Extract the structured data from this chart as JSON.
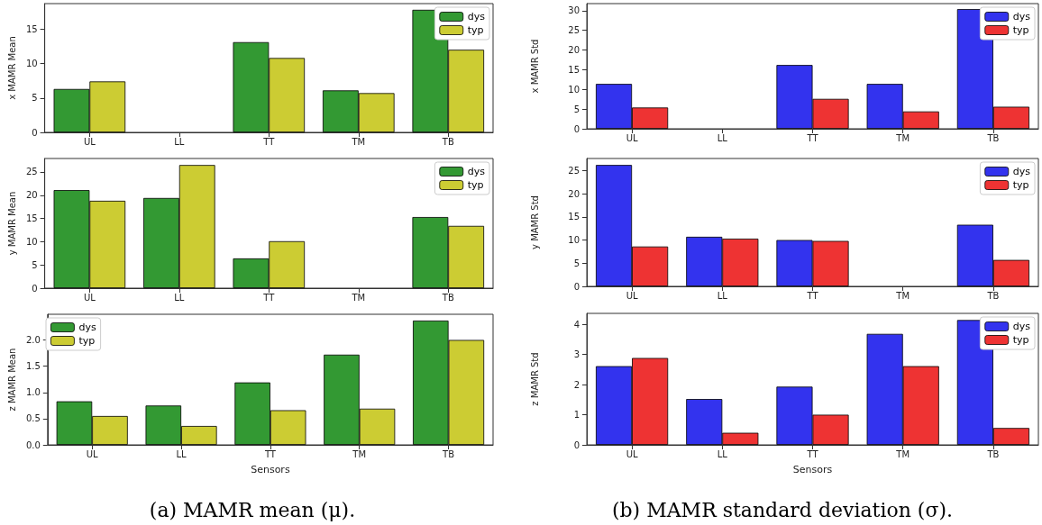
{
  "chart_data": [
    {
      "type": "bar",
      "ylabel": "x MAMR Mean",
      "categories": [
        "UL",
        "LL",
        "TT",
        "TM",
        "TB"
      ],
      "ylim": [
        0,
        18.7
      ],
      "yticks": [
        0,
        5,
        10,
        15
      ],
      "legend": "top right",
      "series": [
        {
          "name": "dys",
          "color": "#339933",
          "values": [
            6.3,
            null,
            13.1,
            6.1,
            17.8
          ]
        },
        {
          "name": "typ",
          "color": "#cccc33",
          "values": [
            7.4,
            null,
            10.8,
            5.7,
            12.0
          ]
        }
      ]
    },
    {
      "type": "bar",
      "ylabel": "x MAMR Std",
      "categories": [
        "UL",
        "LL",
        "TT",
        "TM",
        "TB"
      ],
      "ylim": [
        0,
        31.8
      ],
      "yticks": [
        0,
        5,
        10,
        15,
        20,
        25,
        30
      ],
      "legend": "top right",
      "series": [
        {
          "name": "dys",
          "color": "#3333ee",
          "values": [
            11.4,
            null,
            16.2,
            11.4,
            30.4
          ]
        },
        {
          "name": "typ",
          "color": "#ee3333",
          "values": [
            5.4,
            null,
            7.6,
            4.4,
            5.6
          ]
        }
      ]
    },
    {
      "type": "bar",
      "ylabel": "y MAMR Mean",
      "categories": [
        "UL",
        "LL",
        "TT",
        "TM",
        "TB"
      ],
      "ylim": [
        0,
        27.9
      ],
      "yticks": [
        0,
        5,
        10,
        15,
        20,
        25
      ],
      "legend": "top right",
      "series": [
        {
          "name": "dys",
          "color": "#339933",
          "values": [
            21.1,
            19.4,
            6.4,
            null,
            15.3
          ]
        },
        {
          "name": "typ",
          "color": "#cccc33",
          "values": [
            18.8,
            26.5,
            10.1,
            null,
            13.4
          ]
        }
      ]
    },
    {
      "type": "bar",
      "ylabel": "y MAMR Std",
      "categories": [
        "UL",
        "LL",
        "TT",
        "TM",
        "TB"
      ],
      "ylim": [
        0,
        27.6
      ],
      "yticks": [
        0,
        5,
        10,
        15,
        20,
        25
      ],
      "legend": "top right",
      "series": [
        {
          "name": "dys",
          "color": "#3333ee",
          "values": [
            26.2,
            10.7,
            10.0,
            null,
            13.3
          ]
        },
        {
          "name": "typ",
          "color": "#ee3333",
          "values": [
            8.6,
            10.3,
            9.8,
            null,
            5.7
          ]
        }
      ]
    },
    {
      "type": "bar",
      "ylabel": "z MAMR Mean",
      "xlabel": "Sensors",
      "categories": [
        "UL",
        "LL",
        "TT",
        "TM",
        "TB"
      ],
      "ylim": [
        0,
        2.49
      ],
      "yticks": [
        {
          "value": 0,
          "label": "0.0"
        },
        0.5,
        {
          "value": 1,
          "label": "1.0"
        },
        1.5,
        {
          "value": 2,
          "label": "2.0"
        }
      ],
      "legend": "top left",
      "annotations": [
        "(a) MAMR mean (μ)."
      ],
      "series": [
        {
          "name": "dys",
          "color": "#339933",
          "values": [
            0.83,
            0.75,
            1.19,
            1.72,
            2.37
          ]
        },
        {
          "name": "typ",
          "color": "#cccc33",
          "values": [
            0.55,
            0.36,
            0.66,
            0.69,
            2.0
          ]
        }
      ]
    },
    {
      "type": "bar",
      "ylabel": "z MAMR Std",
      "xlabel": "Sensors",
      "categories": [
        "UL",
        "LL",
        "TT",
        "TM",
        "TB"
      ],
      "ylim": [
        0,
        4.36
      ],
      "yticks": [
        0,
        1,
        2,
        3,
        4
      ],
      "legend": "top right",
      "annotations": [
        "(b) MAMR standard deviation (σ)."
      ],
      "series": [
        {
          "name": "dys",
          "color": "#3333ee",
          "values": [
            2.61,
            1.52,
            1.93,
            3.68,
            4.14
          ]
        },
        {
          "name": "typ",
          "color": "#ee3333",
          "values": [
            2.88,
            0.4,
            1.0,
            2.61,
            0.56
          ]
        }
      ]
    }
  ]
}
